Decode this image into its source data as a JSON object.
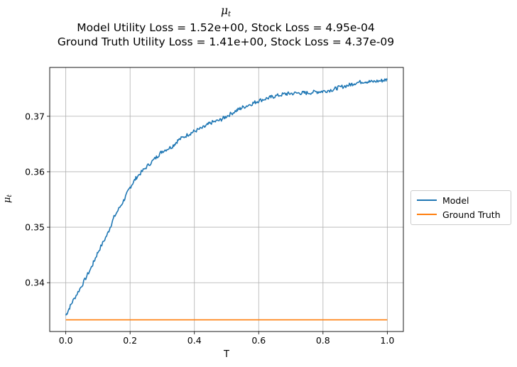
{
  "title": {
    "main_symbol": "μ",
    "main_sub": "t",
    "line2": "Model Utility Loss = 1.52e+00, Stock Loss = 4.95e-04",
    "line3": "Ground Truth Utility Loss = 1.41e+00, Stock Loss = 4.37e-09"
  },
  "ylabel": {
    "symbol": "μ",
    "sub": "t"
  },
  "chart_data": {
    "type": "line",
    "xlabel": "T",
    "xlim": [
      -0.05,
      1.05
    ],
    "ylim": [
      0.3312,
      0.3788
    ],
    "xticks": [
      0.0,
      0.2,
      0.4,
      0.6,
      0.8,
      1.0
    ],
    "xtick_labels": [
      "0.0",
      "0.2",
      "0.4",
      "0.6",
      "0.8",
      "1.0"
    ],
    "yticks": [
      0.34,
      0.35,
      0.36,
      0.37
    ],
    "ytick_labels": [
      "0.34",
      "0.35",
      "0.36",
      "0.37"
    ],
    "grid": true,
    "legend_placement": "right-outside",
    "series": [
      {
        "name": "Model",
        "color": "#1f77b4",
        "x": [
          0.0,
          0.02,
          0.05,
          0.08,
          0.1,
          0.13,
          0.15,
          0.18,
          0.2,
          0.22,
          0.25,
          0.28,
          0.3,
          0.33,
          0.35,
          0.38,
          0.4,
          0.43,
          0.45,
          0.48,
          0.5,
          0.53,
          0.55,
          0.58,
          0.6,
          0.63,
          0.65,
          0.68,
          0.7,
          0.73,
          0.75,
          0.78,
          0.8,
          0.83,
          0.85,
          0.88,
          0.9,
          0.93,
          0.95,
          0.98,
          1.0
        ],
        "y": [
          0.3341,
          0.3365,
          0.3395,
          0.3428,
          0.3455,
          0.3488,
          0.3518,
          0.3548,
          0.3572,
          0.359,
          0.3608,
          0.3625,
          0.3637,
          0.3645,
          0.3657,
          0.3667,
          0.3673,
          0.368,
          0.3688,
          0.3693,
          0.37,
          0.371,
          0.3716,
          0.3723,
          0.3728,
          0.3733,
          0.3736,
          0.374,
          0.3741,
          0.3742,
          0.3742,
          0.3744,
          0.3745,
          0.3748,
          0.3752,
          0.3756,
          0.376,
          0.3763,
          0.3762,
          0.3764,
          0.3766
        ]
      },
      {
        "name": "Ground Truth",
        "color": "#ff7f0e",
        "x": [
          0.0,
          1.0
        ],
        "y": [
          0.3333,
          0.3333
        ]
      }
    ]
  }
}
